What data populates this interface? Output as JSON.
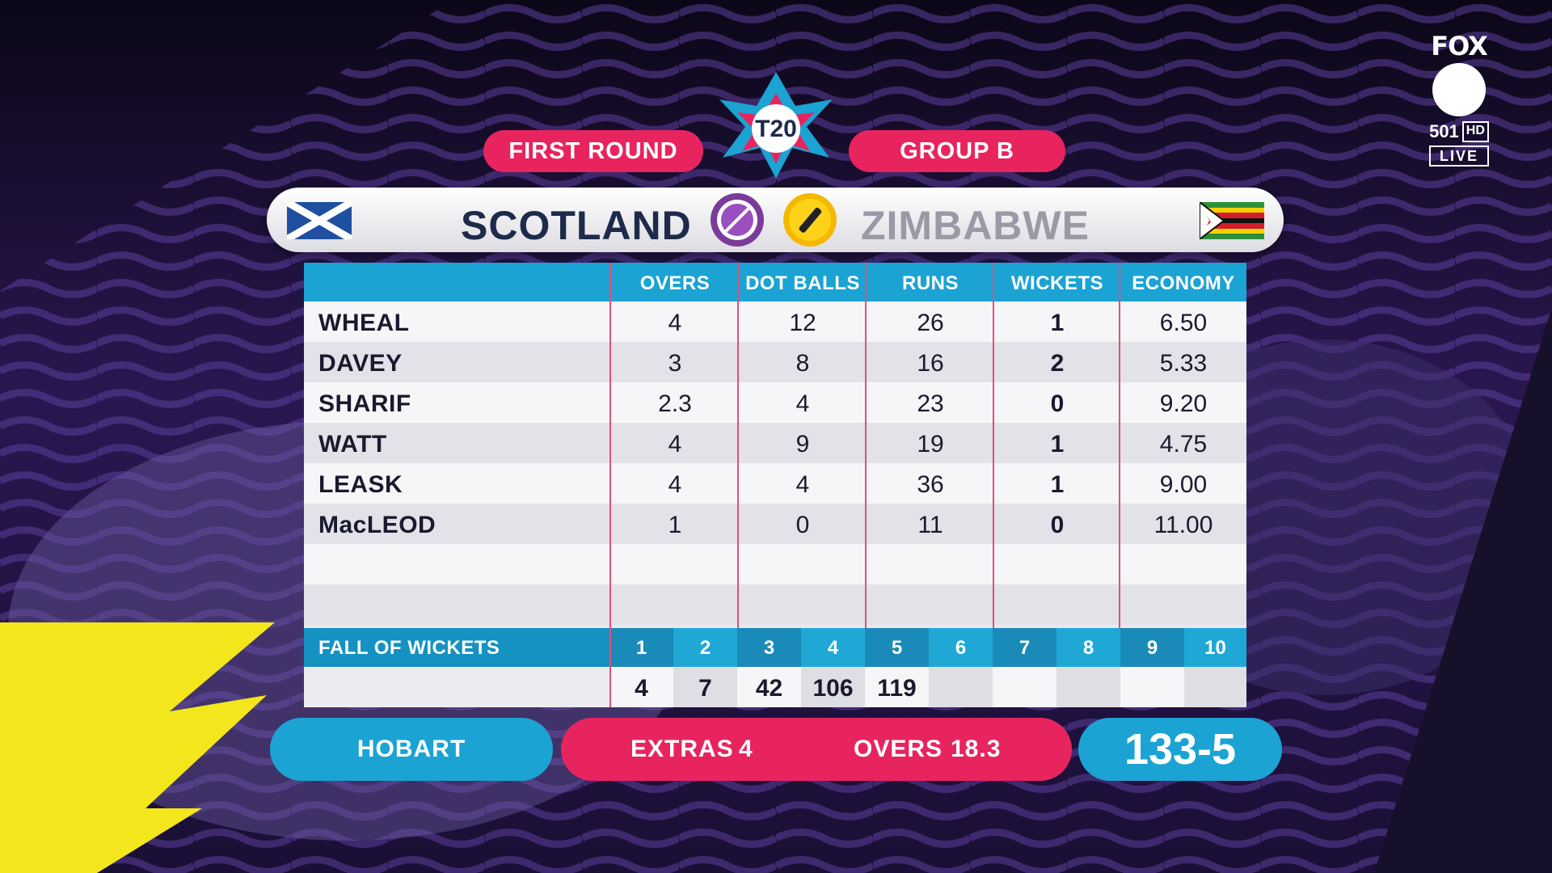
{
  "round_label": "FIRST ROUND",
  "group_label": "GROUP B",
  "tournament_logo_text": "T20",
  "broadcaster": {
    "brand": "FOX",
    "channel": "501",
    "hd": "HD",
    "live": "LIVE"
  },
  "teams": {
    "left": {
      "name": "SCOTLAND",
      "flag_icon": "scotland-flag-icon",
      "badge_icon": "ball-icon"
    },
    "right": {
      "name": "ZIMBABWE",
      "flag_icon": "zimbabwe-flag-icon",
      "badge_icon": "bat-icon"
    }
  },
  "table": {
    "headers": [
      "OVERS",
      "DOT BALLS",
      "RUNS",
      "WICKETS",
      "ECONOMY"
    ],
    "rows": [
      {
        "name": "WHEAL",
        "overs": "4",
        "dots": "12",
        "runs": "26",
        "wickets": "1",
        "economy": "6.50"
      },
      {
        "name": "DAVEY",
        "overs": "3",
        "dots": "8",
        "runs": "16",
        "wickets": "2",
        "economy": "5.33"
      },
      {
        "name": "SHARIF",
        "overs": "2.3",
        "dots": "4",
        "runs": "23",
        "wickets": "0",
        "economy": "9.20"
      },
      {
        "name": "WATT",
        "overs": "4",
        "dots": "9",
        "runs": "19",
        "wickets": "1",
        "economy": "4.75"
      },
      {
        "name": "LEASK",
        "overs": "4",
        "dots": "4",
        "runs": "36",
        "wickets": "1",
        "economy": "9.00"
      },
      {
        "name": "MacLEOD",
        "overs": "1",
        "dots": "0",
        "runs": "11",
        "wickets": "0",
        "economy": "11.00"
      }
    ],
    "fall_of_wickets_label": "FALL OF WICKETS",
    "fow_numbers": [
      "1",
      "2",
      "3",
      "4",
      "5",
      "6",
      "7",
      "8",
      "9",
      "10"
    ],
    "fow_values": [
      "4",
      "7",
      "42",
      "106",
      "119",
      "",
      "",
      "",
      "",
      ""
    ]
  },
  "footer": {
    "venue": "HOBART",
    "extras_label": "EXTRAS",
    "extras_value": "4",
    "overs_label": "OVERS",
    "overs_value": "18.3",
    "score": "133-5"
  },
  "colors": {
    "accent_pink": "#e8245f",
    "accent_cyan": "#1ba3d3",
    "background": "#2a1650",
    "burst": "#f3e61c"
  }
}
